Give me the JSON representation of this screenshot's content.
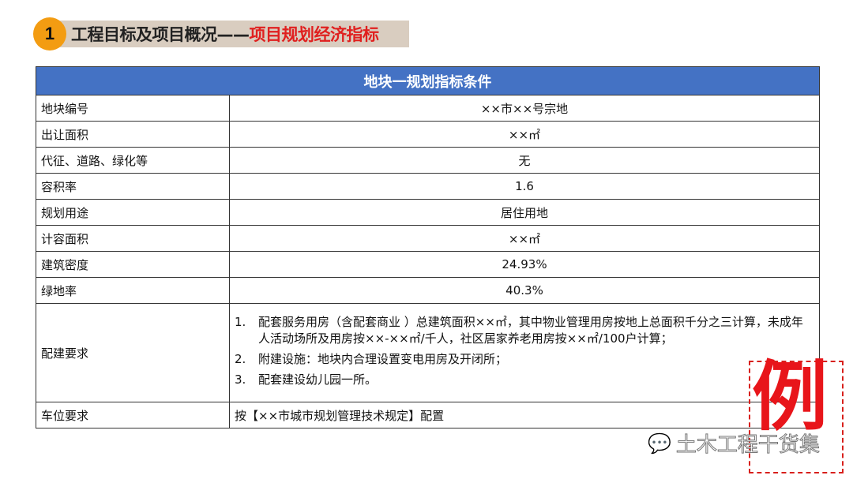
{
  "header": {
    "number": "1",
    "title_main": "工程目标及项目概况——",
    "title_highlight": "项目规划经济指标"
  },
  "table": {
    "caption": "地块一规划指标条件",
    "rows": [
      {
        "label": "地块编号",
        "value": "××市××号宗地"
      },
      {
        "label": "出让面积",
        "value": "××㎡"
      },
      {
        "label": "代征、道路、绿化等",
        "value": "无"
      },
      {
        "label": "容积率",
        "value": "1.6"
      },
      {
        "label": "规划用途",
        "value": "居住用地"
      },
      {
        "label": "计容面积",
        "value": "××㎡"
      },
      {
        "label": "建筑密度",
        "value": "24.93%"
      },
      {
        "label": "绿地率",
        "value": "40.3%"
      }
    ],
    "facilities": {
      "label": "配建要求",
      "items": [
        {
          "num": "1.",
          "text": "配套服务用房（含配套商业 ）总建筑面积××㎡，其中物业管理用房按地上总面积千分之三计算，未成年人活动场所及用房按××-××㎡/千人，社区居家养老用房按××㎡/100户计算；"
        },
        {
          "num": "2.",
          "text": "附建设施：地块内合理设置变电用房及开闭所；"
        },
        {
          "num": "3.",
          "text": "配套建设幼儿园一所。"
        }
      ]
    },
    "parking": {
      "label": "车位要求",
      "value": "按【××市城市规划管理技术规定】配置"
    }
  },
  "stamp": {
    "text": "例",
    "color": "#e8151a"
  },
  "watermark": {
    "text": "土木工程干货集",
    "icon": "wechat-icon"
  },
  "colors": {
    "header_blue": "#4472c4",
    "accent_orange": "#f39c12",
    "highlight_red": "#e0201f"
  }
}
